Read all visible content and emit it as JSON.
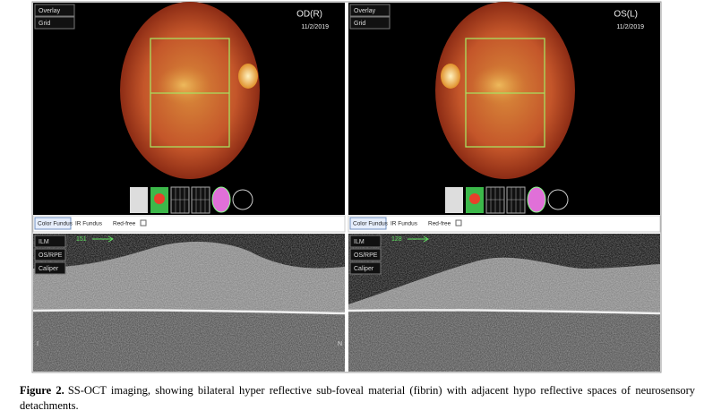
{
  "left_panel": {
    "buttons": [
      "Overlay",
      "Grid"
    ],
    "eye": "OD(R)",
    "date": "11/2/2019",
    "tabs": [
      "Color Fundus",
      "IR Fundus",
      "Red-free"
    ],
    "oct_buttons": [
      "ILM",
      "OS/RPE",
      "Caliper"
    ],
    "scan_number": "151",
    "oct_left_label": "I",
    "oct_right_label": "N"
  },
  "right_panel": {
    "buttons": [
      "Overlay",
      "Grid"
    ],
    "eye": "OS(L)",
    "date": "11/2/2019",
    "tabs": [
      "Color Fundus",
      "IR Fundus",
      "Red-free"
    ],
    "oct_buttons": [
      "ILM",
      "OS/RPE",
      "Caliper"
    ],
    "scan_number": "128"
  },
  "caption": {
    "label": "Figure 2.",
    "text": "SS-OCT imaging, showing bilateral hyper reflective sub-foveal material (fibrin) with adjacent hypo reflective spaces of neurosensory detachments."
  }
}
